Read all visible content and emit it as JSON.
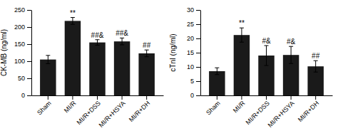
{
  "chart_data": [
    {
      "type": "bar",
      "ylabel": "CK-MB (ng/ml)",
      "categories": [
        "Sham",
        "MI/R",
        "MI/R+DSS",
        "MI/R+HSYA",
        "MI/R+DH"
      ],
      "values": [
        105,
        218,
        155,
        158,
        123
      ],
      "errors": [
        12,
        10,
        8,
        10,
        10
      ],
      "annotations": [
        null,
        "**",
        "##&",
        "##&",
        "##"
      ],
      "color": "#1a1a1a",
      "ylim": [
        0,
        250
      ],
      "yticks": [
        0,
        50,
        100,
        150,
        200,
        250
      ]
    },
    {
      "type": "bar",
      "ylabel": "cTnI (ng/ml)",
      "categories": [
        "Sham",
        "MI/R",
        "MI/R+DSS",
        "MI/R+HSYA",
        "MI/R+DH"
      ],
      "values": [
        8.5,
        21.2,
        14.0,
        14.2,
        10.2
      ],
      "errors": [
        1.2,
        2.5,
        3.5,
        3.0,
        2.0
      ],
      "annotations": [
        null,
        "**",
        "#&",
        "#&",
        "##"
      ],
      "color": "#1a1a1a",
      "ylim": [
        0,
        30
      ],
      "yticks": [
        0,
        5,
        10,
        15,
        20,
        25,
        30
      ]
    }
  ]
}
